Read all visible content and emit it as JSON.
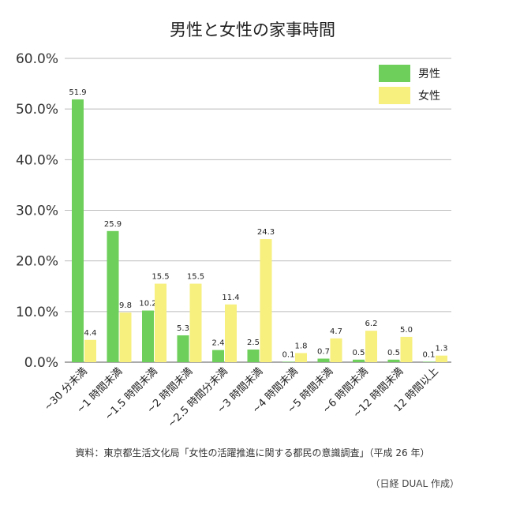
{
  "source": "資料：東京都生活文化局「女性の活躍推進に関する都民の意識調査」（平成 26 年）",
  "credit": "（日経 DUAL 作成）",
  "colors": {
    "male": "#6ecf5a",
    "female": "#f7ef7e",
    "grid": "#bbbbbb",
    "axis": "#555555"
  },
  "chart_data": {
    "type": "bar",
    "title": "男性と女性の家事時間",
    "categories": [
      "~30 分未満",
      "~1 時間未満",
      "~1.5 時間未満",
      "~2 時間未満",
      "~2.5 時間分未満",
      "~3 時間未満",
      "~4 時間未満",
      "~5 時間未満",
      "~6 時間未満",
      "~12 時間未満",
      "12 時間以上"
    ],
    "series": [
      {
        "name": "男性",
        "values": [
          51.9,
          25.9,
          10.2,
          5.3,
          2.4,
          2.5,
          0.1,
          0.7,
          0.5,
          0.5,
          0.1
        ]
      },
      {
        "name": "女性",
        "values": [
          4.4,
          9.8,
          15.5,
          15.5,
          11.4,
          24.3,
          1.8,
          4.7,
          6.2,
          5.0,
          1.3
        ]
      }
    ],
    "data_labels": [
      [
        "51.9",
        "25.9",
        "10.2",
        "5.3",
        "2.4",
        "2.5",
        "0.1",
        "0.7",
        "0.5",
        "0.5",
        "0.1"
      ],
      [
        "4.4",
        "9.8",
        "15.5",
        "15.5",
        "11.4",
        "24.3",
        "1.8",
        "4.7",
        "6.2",
        "5.0",
        "1.3"
      ]
    ],
    "ylim": [
      0,
      60
    ],
    "yticks": [
      "0.0%",
      "10.0%",
      "20.0%",
      "30.0%",
      "40.0%",
      "50.0%",
      "60.0%"
    ],
    "grid": true,
    "legend_position": "top-right",
    "xlabel": "",
    "ylabel": ""
  }
}
